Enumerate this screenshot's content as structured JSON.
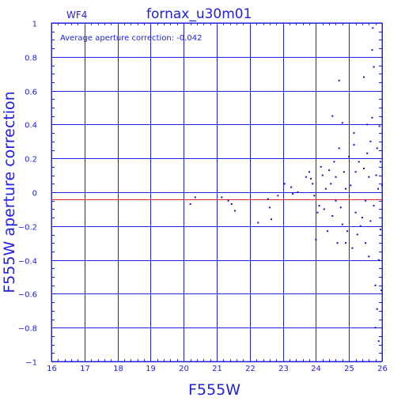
{
  "colors": {
    "axis": "#2020e0",
    "points": "#1010d0",
    "reference_line": "#e02020",
    "background": "#ffffff"
  },
  "chart_data": {
    "type": "scatter",
    "chip": "WF4",
    "title": "fornax_u30m01",
    "xlabel": "F555W",
    "ylabel": "F555W aperture correction",
    "annotation": "Average aperture correction: -0.042",
    "xlim": [
      16,
      26
    ],
    "ylim": [
      -1,
      1
    ],
    "x_ticks": [
      "16",
      "17",
      "18",
      "19",
      "20",
      "21",
      "22",
      "23",
      "24",
      "25",
      "26"
    ],
    "y_ticks": [
      "1",
      "0.8",
      "0.6",
      "0.4",
      "0.2",
      "0",
      "−0.2",
      "−0.4",
      "−0.6",
      "−0.8",
      "−1"
    ],
    "grid": true,
    "reference_line": {
      "y": -0.042
    },
    "points": [
      [
        20.2,
        -0.07
      ],
      [
        20.35,
        -0.03
      ],
      [
        21.15,
        -0.03
      ],
      [
        21.35,
        -0.05
      ],
      [
        21.45,
        -0.07
      ],
      [
        21.55,
        -0.11
      ],
      [
        22.25,
        -0.18
      ],
      [
        22.55,
        -0.04
      ],
      [
        22.6,
        -0.09
      ],
      [
        22.65,
        -0.16
      ],
      [
        22.85,
        -0.02
      ],
      [
        23.05,
        0.05
      ],
      [
        23.25,
        0.03
      ],
      [
        23.3,
        -0.01
      ],
      [
        23.45,
        0.0
      ],
      [
        23.7,
        0.09
      ],
      [
        23.8,
        0.12
      ],
      [
        23.85,
        0.08
      ],
      [
        23.9,
        0.05
      ],
      [
        23.95,
        -0.02
      ],
      [
        24.0,
        -0.28
      ],
      [
        24.05,
        -0.12
      ],
      [
        24.1,
        -0.08
      ],
      [
        24.15,
        0.15
      ],
      [
        24.2,
        0.1
      ],
      [
        24.25,
        -0.1
      ],
      [
        24.3,
        0.02
      ],
      [
        24.35,
        -0.23
      ],
      [
        24.4,
        0.13
      ],
      [
        24.45,
        0.05
      ],
      [
        24.5,
        0.45
      ],
      [
        24.5,
        -0.14
      ],
      [
        24.55,
        0.18
      ],
      [
        24.6,
        0.09
      ],
      [
        24.6,
        -0.05
      ],
      [
        24.65,
        -0.3
      ],
      [
        24.7,
        0.66
      ],
      [
        24.7,
        0.26
      ],
      [
        24.75,
        -0.09
      ],
      [
        24.8,
        0.41
      ],
      [
        24.8,
        -0.19
      ],
      [
        24.85,
        0.12
      ],
      [
        24.9,
        0.02
      ],
      [
        24.9,
        -0.3
      ],
      [
        24.95,
        -0.23
      ],
      [
        25.0,
        0.21
      ],
      [
        25.05,
        0.04
      ],
      [
        25.1,
        -0.33
      ],
      [
        25.15,
        0.35
      ],
      [
        25.15,
        0.28
      ],
      [
        25.2,
        0.12
      ],
      [
        25.2,
        -0.12
      ],
      [
        25.25,
        -0.25
      ],
      [
        25.3,
        0.18
      ],
      [
        25.35,
        -0.2
      ],
      [
        25.4,
        -0.15
      ],
      [
        25.45,
        0.68
      ],
      [
        25.45,
        0.14
      ],
      [
        25.5,
        -0.05
      ],
      [
        25.5,
        -0.3
      ],
      [
        25.55,
        0.4
      ],
      [
        25.55,
        0.23
      ],
      [
        25.6,
        -0.38
      ],
      [
        25.6,
        0.09
      ],
      [
        25.65,
        0.3
      ],
      [
        25.65,
        -0.17
      ],
      [
        25.7,
        0.84
      ],
      [
        25.7,
        0.44
      ],
      [
        25.72,
        0.97
      ],
      [
        25.75,
        -0.08
      ],
      [
        25.75,
        0.74
      ],
      [
        25.8,
        -0.55
      ],
      [
        25.8,
        -0.8
      ],
      [
        25.82,
        0.1
      ],
      [
        25.85,
        0.26
      ],
      [
        25.85,
        -0.69
      ],
      [
        25.88,
        0.02
      ],
      [
        25.9,
        -0.4
      ],
      [
        25.9,
        -0.88
      ],
      [
        25.92,
        0.39
      ],
      [
        25.95,
        -0.22
      ],
      [
        25.95,
        0.18
      ],
      [
        25.98,
        -0.58
      ],
      [
        26.0,
        0.04
      ]
    ]
  }
}
